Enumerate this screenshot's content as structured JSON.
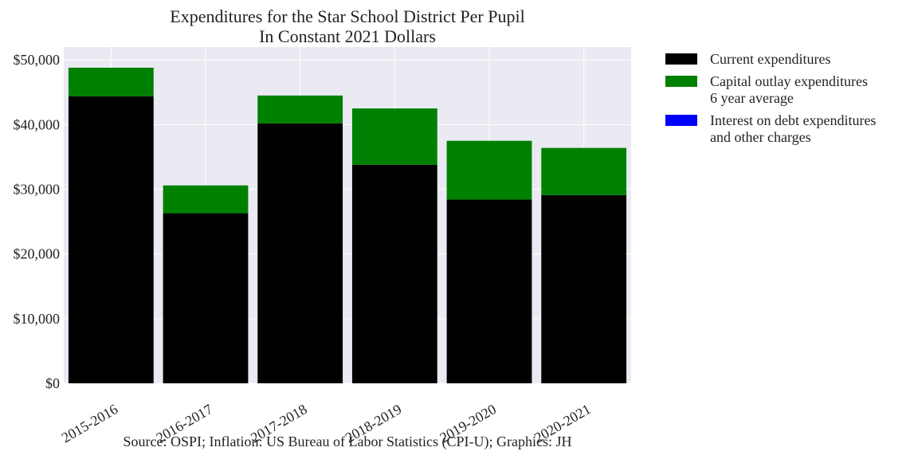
{
  "chart_data": {
    "type": "bar",
    "stacked": true,
    "title_lines": [
      "Expenditures for the Star School District Per Pupil",
      "In Constant 2021 Dollars"
    ],
    "xlabel": "",
    "ylabel": "",
    "categories": [
      "2015-2016",
      "2016-2017",
      "2017-2018",
      "2018-2019",
      "2019-2020",
      "2020-2021"
    ],
    "series": [
      {
        "name": "Current expenditures",
        "color": "#000000",
        "values": [
          44400,
          26300,
          40200,
          33800,
          28400,
          29100
        ]
      },
      {
        "name": "Capital outlay expenditures\n6 year average",
        "color": "#008000",
        "values": [
          4400,
          4300,
          4300,
          8700,
          9100,
          7300
        ]
      },
      {
        "name": "Interest on debt expenditures\nand other charges",
        "color": "#0000ff",
        "values": [
          0,
          0,
          0,
          0,
          0,
          0
        ]
      }
    ],
    "ylim": [
      0,
      52000
    ],
    "yticks": [
      0,
      10000,
      20000,
      30000,
      40000,
      50000
    ],
    "ytick_labels": [
      "$0",
      "$10,000",
      "$20,000",
      "$30,000",
      "$40,000",
      "$50,000"
    ],
    "grid": true,
    "legend_position": "outside right",
    "background": "#eaeaf2",
    "source_note": "Source: OSPI; Inflation: US Bureau of Labor Statistics (CPI-U); Graphics: JH"
  }
}
